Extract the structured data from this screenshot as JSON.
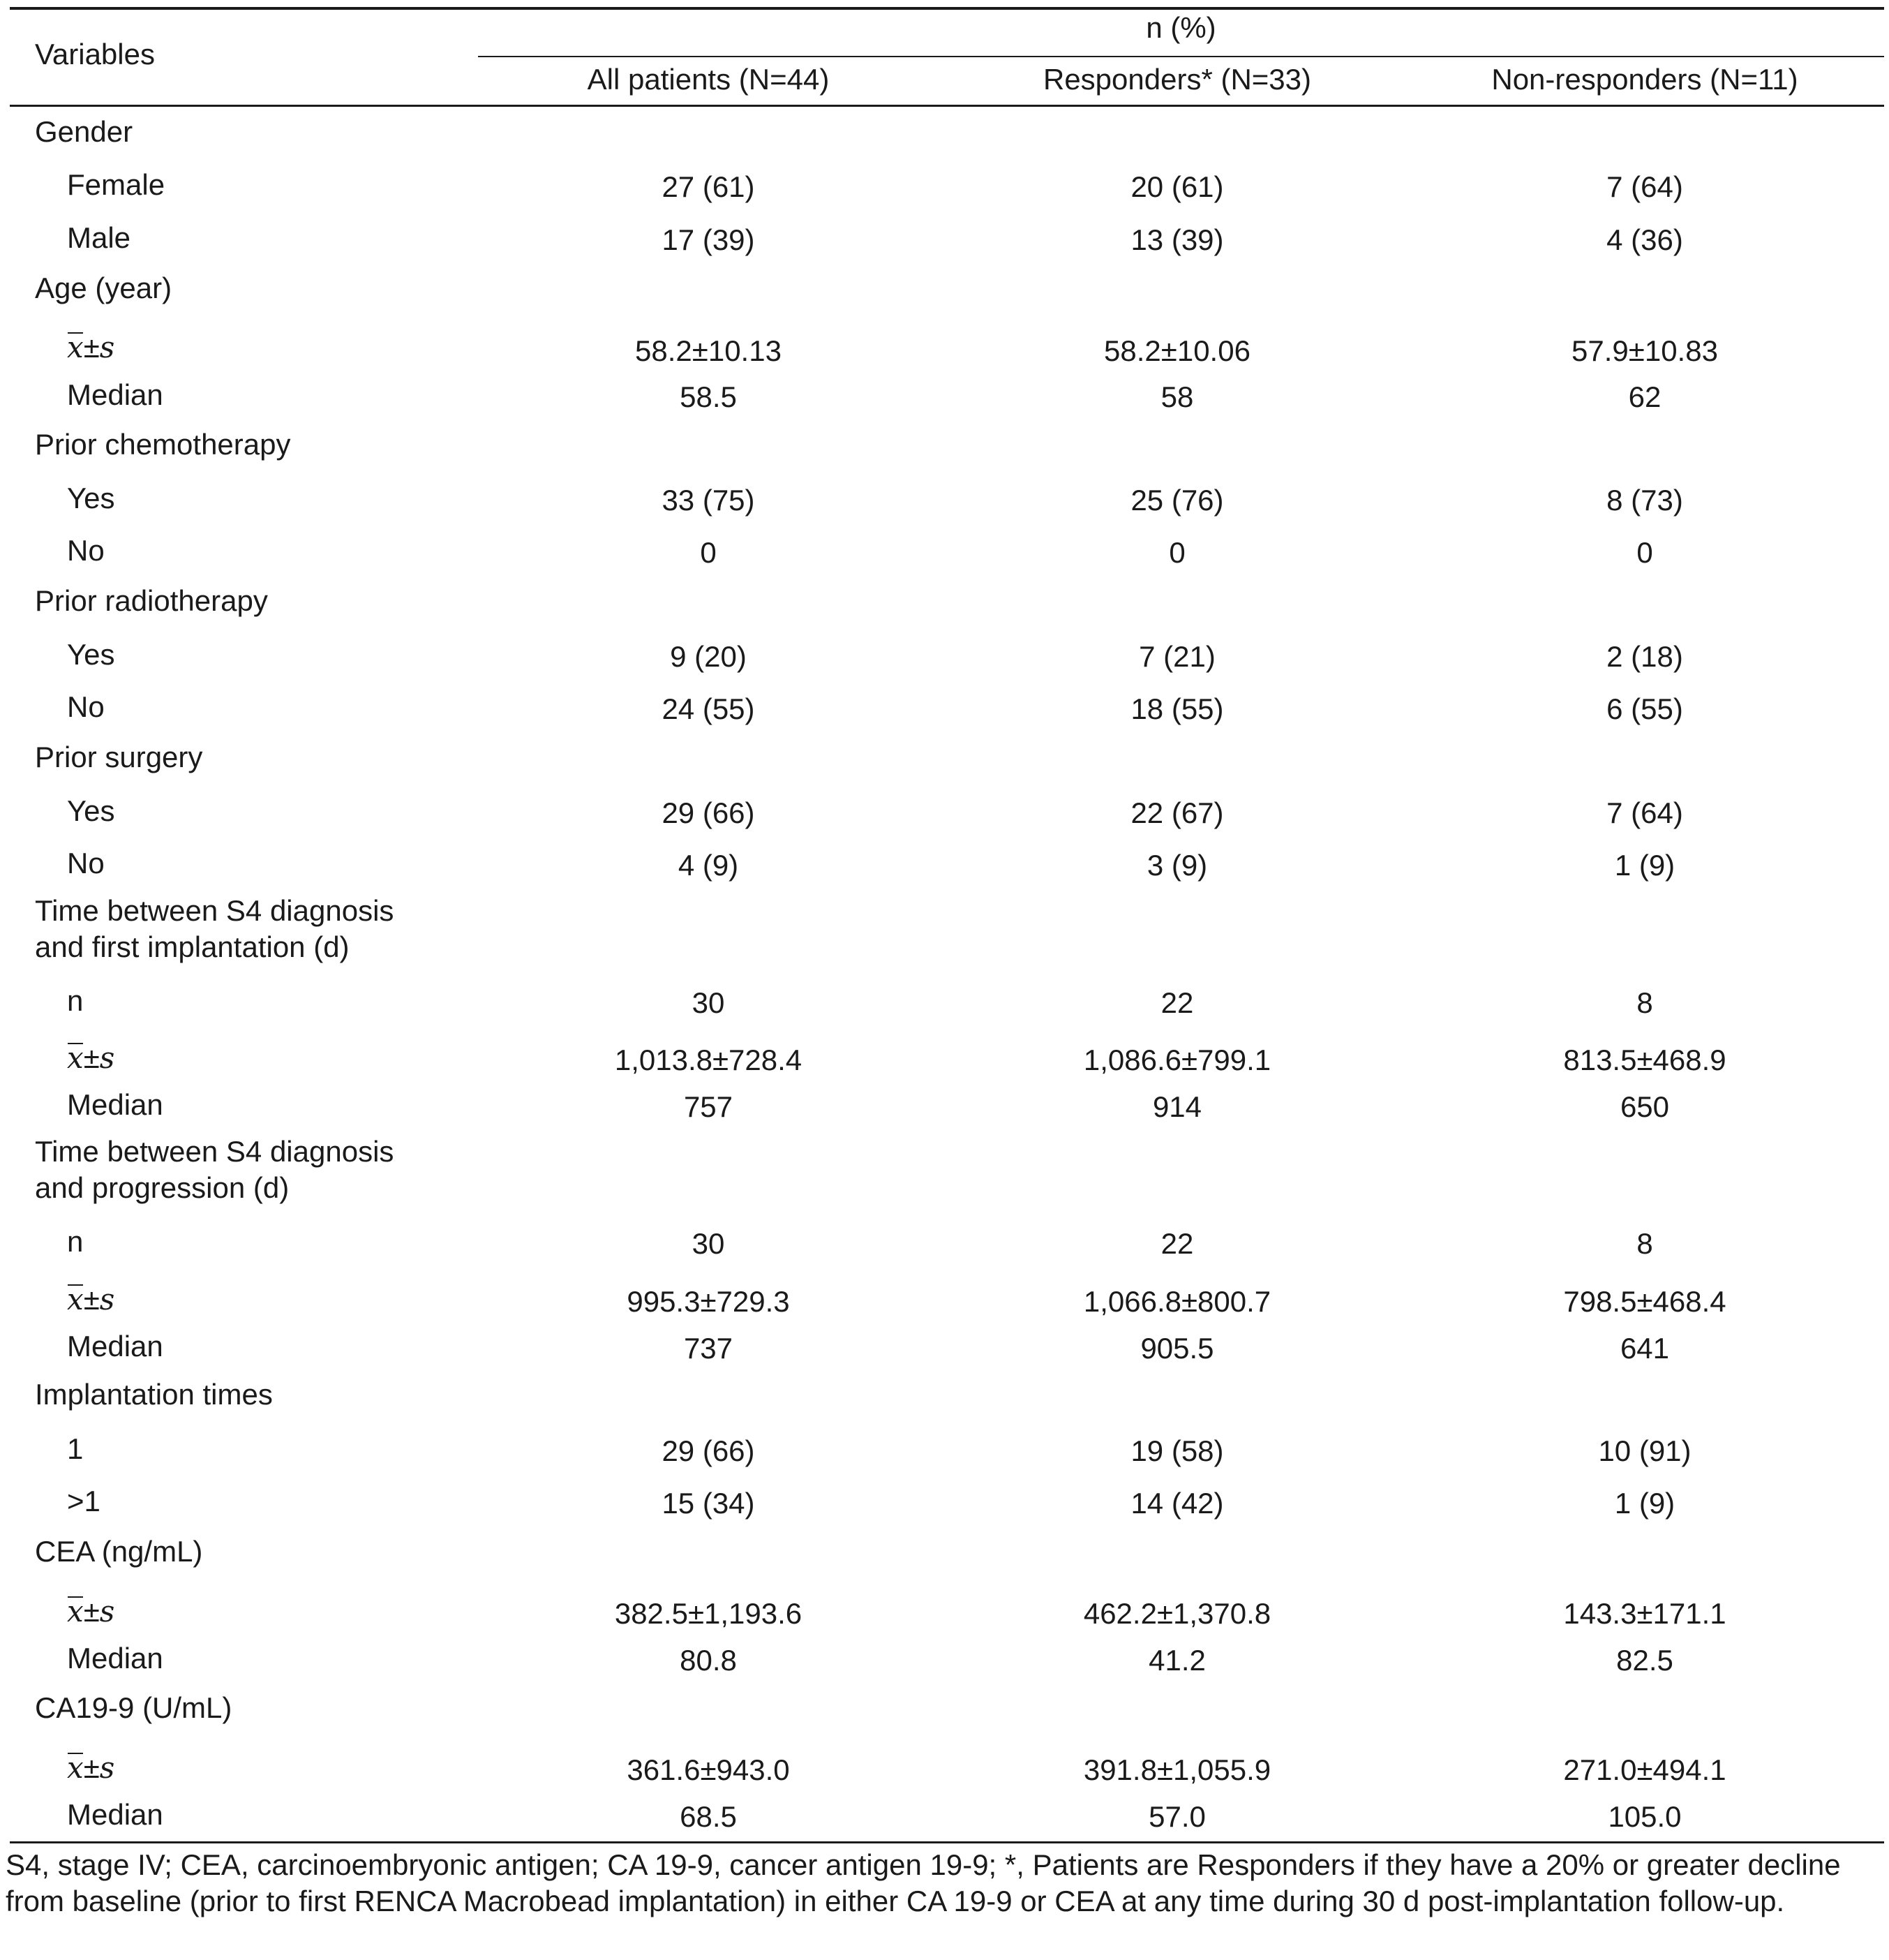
{
  "table": {
    "header": {
      "variables_label": "Variables",
      "group_label": "n (%)",
      "col_all": "All patients (N=44)",
      "col_resp": "Responders* (N=33)",
      "col_nonresp": "Non-responders (N=11)"
    },
    "sections": {
      "gender": {
        "title": "Gender",
        "female": {
          "label": "Female",
          "all": "27 (61)",
          "resp": "20 (61)",
          "nonresp": "7 (64)"
        },
        "male": {
          "label": "Male",
          "all": "17 (39)",
          "resp": "13 (39)",
          "nonresp": "4 (36)"
        }
      },
      "age": {
        "title": "Age (year)",
        "mean_sd": {
          "label_x": "x",
          "label_pm": "±",
          "label_s": "s",
          "all": "58.2±10.13",
          "resp": "58.2±10.06",
          "nonresp": "57.9±10.83"
        },
        "median": {
          "label": "Median",
          "all": "58.5",
          "resp": "58",
          "nonresp": "62"
        }
      },
      "prior_chemo": {
        "title": "Prior chemotherapy",
        "yes": {
          "label": "Yes",
          "all": "33 (75)",
          "resp": "25 (76)",
          "nonresp": "8 (73)"
        },
        "no": {
          "label": "No",
          "all": "0",
          "resp": "0",
          "nonresp": "0"
        }
      },
      "prior_radio": {
        "title": "Prior radiotherapy",
        "yes": {
          "label": "Yes",
          "all": "9 (20)",
          "resp": "7 (21)",
          "nonresp": "2 (18)"
        },
        "no": {
          "label": "No",
          "all": "24 (55)",
          "resp": "18 (55)",
          "nonresp": "6 (55)"
        }
      },
      "prior_surgery": {
        "title": "Prior surgery",
        "yes": {
          "label": "Yes",
          "all": "29 (66)",
          "resp": "22 (67)",
          "nonresp": "7 (64)"
        },
        "no": {
          "label": "No",
          "all": "4 (9)",
          "resp": "3 (9)",
          "nonresp": "1 (9)"
        }
      },
      "time_implant": {
        "title_line1": "Time between S4 diagnosis",
        "title_line2": "and first implantation (d)",
        "n": {
          "label": "n",
          "all": "30",
          "resp": "22",
          "nonresp": "8"
        },
        "mean_sd": {
          "all": "1,013.8±728.4",
          "resp": "1,086.6±799.1",
          "nonresp": "813.5±468.9"
        },
        "median": {
          "label": "Median",
          "all": "757",
          "resp": "914",
          "nonresp": "650"
        }
      },
      "time_progression": {
        "title_line1": "Time between S4 diagnosis",
        "title_line2": "and progression (d)",
        "n": {
          "label": "n",
          "all": "30",
          "resp": "22",
          "nonresp": "8"
        },
        "mean_sd": {
          "all": "995.3±729.3",
          "resp": "1,066.8±800.7",
          "nonresp": "798.5±468.4"
        },
        "median": {
          "label": "Median",
          "all": "737",
          "resp": "905.5",
          "nonresp": "641"
        }
      },
      "implant_times": {
        "title": "Implantation times",
        "one": {
          "label": "1",
          "all": "29 (66)",
          "resp": "19 (58)",
          "nonresp": "10 (91)"
        },
        "more": {
          "label": ">1",
          "all": "15 (34)",
          "resp": "14 (42)",
          "nonresp": "1 (9)"
        }
      },
      "cea": {
        "title": "CEA (ng/mL)",
        "mean_sd": {
          "all": "382.5±1,193.6",
          "resp": "462.2±1,370.8",
          "nonresp": "143.3±171.1"
        },
        "median": {
          "label": "Median",
          "all": "80.8",
          "resp": "41.2",
          "nonresp": "82.5"
        }
      },
      "ca199": {
        "title": "CA19-9 (U/mL)",
        "mean_sd": {
          "all": "361.6±943.0",
          "resp": "391.8±1,055.9",
          "nonresp": "271.0±494.1"
        },
        "median": {
          "label": "Median",
          "all": "68.5",
          "resp": "57.0",
          "nonresp": "105.0"
        }
      }
    },
    "footnote": "S4, stage IV; CEA, carcinoembryonic antigen; CA 19-9, cancer antigen 19-9; *, Patients are Responders if they have a 20% or greater decline from baseline (prior to first RENCA Macrobead implantation) in either CA 19-9 or CEA at any time during 30 d post-implantation follow-up."
  }
}
